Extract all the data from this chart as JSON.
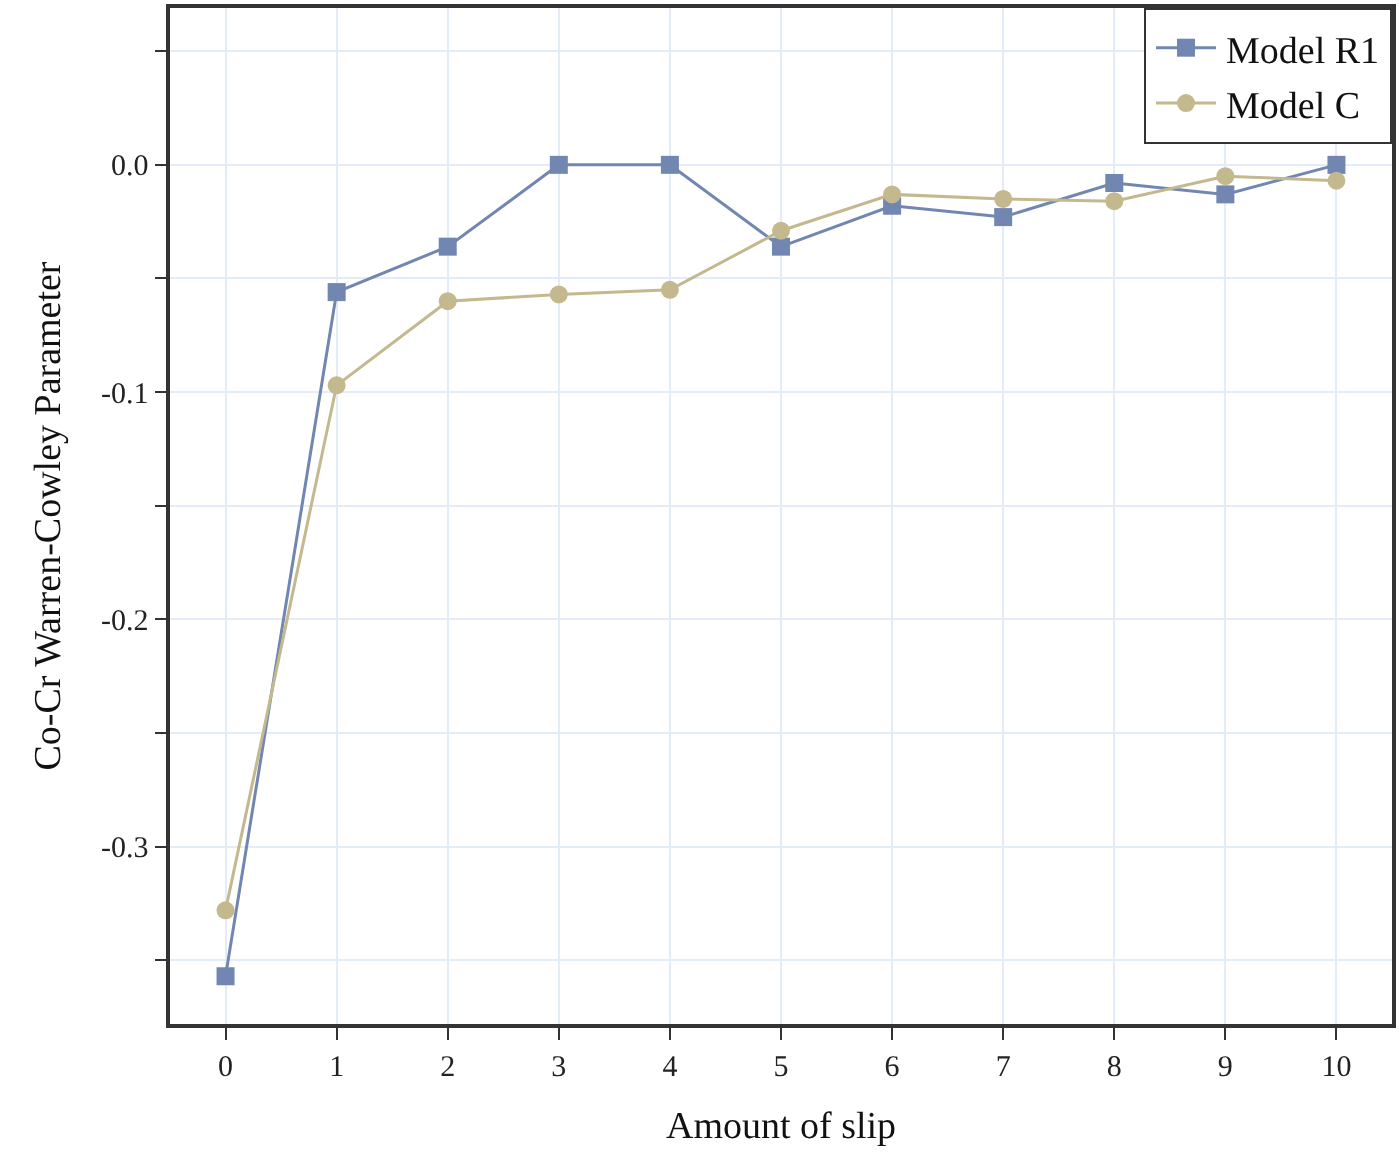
{
  "chart_data": {
    "type": "line",
    "xlabel": "Amount of slip",
    "ylabel": "Co-Cr Warren-Cowley Parameter",
    "x": [
      0,
      1,
      2,
      3,
      4,
      5,
      6,
      7,
      8,
      9,
      10
    ],
    "series": [
      {
        "name": "Model R1",
        "color": "#7186b0",
        "marker": "square",
        "values": [
          -0.357,
          -0.056,
          -0.036,
          0.0,
          0.0,
          -0.036,
          -0.018,
          -0.023,
          -0.008,
          -0.013,
          0.0
        ]
      },
      {
        "name": "Model C",
        "color": "#c4b98e",
        "marker": "circle",
        "values": [
          -0.328,
          -0.097,
          -0.06,
          -0.057,
          -0.055,
          -0.029,
          -0.013,
          -0.015,
          -0.016,
          -0.005,
          -0.007
        ]
      }
    ],
    "xlim": [
      -0.5,
      10.5
    ],
    "ylim": [
      -0.378,
      0.069
    ],
    "xticks": [
      0,
      1,
      2,
      3,
      4,
      5,
      6,
      7,
      8,
      9,
      10
    ],
    "yticks": [
      {
        "value": -0.35,
        "label": null
      },
      {
        "value": -0.3,
        "label": "-0.3"
      },
      {
        "value": -0.25,
        "label": null
      },
      {
        "value": -0.2,
        "label": "-0.2"
      },
      {
        "value": -0.15,
        "label": null
      },
      {
        "value": -0.1,
        "label": "-0.1"
      },
      {
        "value": -0.05,
        "label": null
      },
      {
        "value": 0.0,
        "label": "0.0"
      },
      {
        "value": 0.05,
        "label": null
      }
    ],
    "grid": true,
    "legend": "top right",
    "line_style": "solid"
  }
}
